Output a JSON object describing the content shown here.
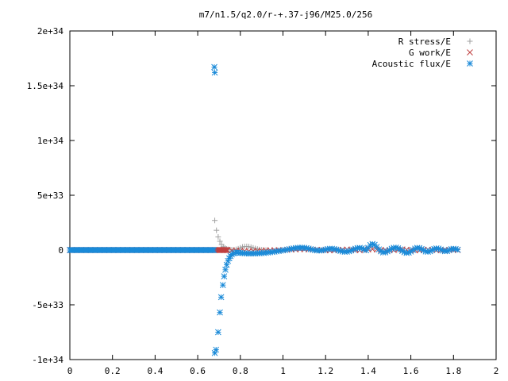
{
  "chart_data": {
    "type": "scatter",
    "title": "m7/n1.5/q2.0/r-+.37-j96/M25.0/256",
    "xlabel": "",
    "ylabel": "",
    "xlim": [
      0,
      2
    ],
    "ylim": [
      -1e+34,
      2e+34
    ],
    "x_ticks": [
      0,
      0.2,
      0.4,
      0.6,
      0.8,
      1,
      1.2,
      1.4,
      1.6,
      1.8,
      2
    ],
    "x_tick_labels": [
      "0",
      "0.2",
      "0.4",
      "0.6",
      "0.8",
      "1",
      "1.2",
      "1.4",
      "1.6",
      "1.8",
      "2"
    ],
    "y_ticks": [
      -1e+34,
      -5e+33,
      0,
      5e+33,
      1e+34,
      1.5e+34,
      2e+34
    ],
    "y_tick_labels": [
      "-1e+34",
      "-5e+33",
      "0",
      "5e+33",
      "1e+34",
      "1.5e+34",
      "2e+34"
    ],
    "grid": false,
    "legend_position": "top-right",
    "series": [
      {
        "name": "R stress/E",
        "marker": "plus",
        "color": "#a0a0a0",
        "points": [
          [
            0.68,
            2.7e+33
          ],
          [
            0.688,
            1.8e+33
          ],
          [
            0.696,
            1.2e+33
          ],
          [
            0.704,
            8e+32
          ],
          [
            0.712,
            5e+32
          ],
          [
            0.72,
            3e+32
          ],
          [
            0.728,
            1.8e+32
          ],
          [
            0.736,
            1e+32
          ],
          [
            0.744,
            6e+31
          ],
          [
            0.752,
            4e+31
          ],
          [
            0.76,
            3e+31
          ],
          [
            0.77,
            3e+31
          ],
          [
            0.78,
            6e+31
          ],
          [
            0.79,
            1.2e+32
          ],
          [
            0.8,
            2e+32
          ],
          [
            0.81,
            2.8e+32
          ],
          [
            0.82,
            3.2e+32
          ],
          [
            0.83,
            3.3e+32
          ],
          [
            0.84,
            3.1e+32
          ],
          [
            0.85,
            2.6e+32
          ],
          [
            0.86,
            2e+32
          ],
          [
            0.87,
            1.4e+32
          ],
          [
            0.88,
            9e+31
          ],
          [
            0.89,
            5e+31
          ],
          [
            0.9,
            2e+31
          ],
          [
            0.91,
            0
          ],
          [
            0.92,
            -1e+31
          ],
          [
            0.93,
            0
          ]
        ]
      },
      {
        "name": "G work/E",
        "marker": "cross",
        "color": "#c04040",
        "points": [
          [
            0.74,
            -2e+31
          ],
          [
            0.76,
            -4e+31
          ],
          [
            0.78,
            -6e+31
          ],
          [
            0.8,
            -8e+31
          ],
          [
            0.82,
            -9e+31
          ],
          [
            0.84,
            -1e+32
          ],
          [
            0.86,
            -9e+31
          ],
          [
            0.88,
            -8e+31
          ],
          [
            0.9,
            -6e+31
          ],
          [
            0.92,
            -4e+31
          ],
          [
            0.94,
            -3e+31
          ],
          [
            0.96,
            -2e+31
          ],
          [
            0.98,
            -1e+31
          ],
          [
            1.0,
            0
          ],
          [
            1.02,
            2e+31
          ],
          [
            1.04,
            4e+31
          ],
          [
            1.06,
            6e+31
          ],
          [
            1.08,
            8e+31
          ],
          [
            1.1,
            8e+31
          ],
          [
            1.12,
            6e+31
          ],
          [
            1.14,
            4e+31
          ],
          [
            1.16,
            2e+31
          ],
          [
            1.18,
            0
          ],
          [
            1.2,
            -2e+31
          ],
          [
            1.22,
            -3e+31
          ],
          [
            1.24,
            -2e+31
          ],
          [
            1.26,
            0
          ],
          [
            1.28,
            3e+31
          ],
          [
            1.3,
            5e+31
          ],
          [
            1.32,
            4e+31
          ],
          [
            1.34,
            1e+31
          ],
          [
            1.36,
            -2e+31
          ],
          [
            1.38,
            2e+31
          ],
          [
            1.4,
            6e+31
          ],
          [
            1.42,
            8e+31
          ],
          [
            1.44,
            5e+31
          ],
          [
            1.46,
            1e+31
          ],
          [
            1.48,
            -2e+31
          ],
          [
            1.5,
            -3e+31
          ],
          [
            1.52,
            0
          ],
          [
            1.54,
            4e+31
          ],
          [
            1.56,
            6e+31
          ],
          [
            1.58,
            3e+31
          ],
          [
            1.6,
            -1e+31
          ],
          [
            1.62,
            -3e+31
          ],
          [
            1.64,
            -1e+31
          ],
          [
            1.66,
            2e+31
          ],
          [
            1.68,
            4e+31
          ],
          [
            1.7,
            2e+31
          ],
          [
            1.72,
            -1e+31
          ],
          [
            1.74,
            -2e+31
          ],
          [
            1.76,
            0
          ],
          [
            1.78,
            2e+31
          ],
          [
            1.8,
            1e+31
          ],
          [
            1.82,
            0
          ]
        ]
      },
      {
        "name": "Acoustic flux/E",
        "marker": "star",
        "color": "#1a8ad8",
        "points": [
          [
            0.678,
            1.67e+34
          ],
          [
            0.68,
            1.62e+34
          ],
          [
            0.68,
            -9.4e+33
          ],
          [
            0.686,
            -9.1e+33
          ],
          [
            0.696,
            -7.5e+33
          ],
          [
            0.704,
            -5.7e+33
          ],
          [
            0.71,
            -4.3e+33
          ],
          [
            0.718,
            -3.2e+33
          ],
          [
            0.724,
            -2.4e+33
          ],
          [
            0.73,
            -1.8e+33
          ],
          [
            0.736,
            -1.35e+33
          ],
          [
            0.742,
            -1e+33
          ],
          [
            0.748,
            -7.5e+32
          ],
          [
            0.754,
            -5.5e+32
          ],
          [
            0.76,
            -4e+32
          ],
          [
            0.768,
            -3e+32
          ],
          [
            0.776,
            -2.5e+32
          ],
          [
            0.784,
            -2.3e+32
          ],
          [
            0.792,
            -2.4e+32
          ],
          [
            0.8,
            -2.6e+32
          ],
          [
            0.81,
            -2.8e+32
          ],
          [
            0.82,
            -3e+32
          ],
          [
            0.83,
            -3.1e+32
          ],
          [
            0.84,
            -3.2e+32
          ],
          [
            0.85,
            -3.2e+32
          ],
          [
            0.86,
            -3.2e+32
          ],
          [
            0.87,
            -3.1e+32
          ],
          [
            0.88,
            -3e+32
          ],
          [
            0.89,
            -2.9e+32
          ],
          [
            0.9,
            -2.8e+32
          ],
          [
            0.91,
            -2.7e+32
          ],
          [
            0.92,
            -2.5e+32
          ],
          [
            0.93,
            -2.3e+32
          ],
          [
            0.94,
            -2e+32
          ],
          [
            0.95,
            -1.8e+32
          ],
          [
            0.96,
            -1.5e+32
          ],
          [
            0.97,
            -1.2e+32
          ],
          [
            0.98,
            -9e+31
          ],
          [
            0.99,
            -6e+31
          ],
          [
            1.0,
            -3e+31
          ],
          [
            1.01,
            0
          ],
          [
            1.02,
            4e+31
          ],
          [
            1.03,
            8e+31
          ],
          [
            1.04,
            1.2e+32
          ],
          [
            1.05,
            1.5e+32
          ],
          [
            1.06,
            1.8e+32
          ],
          [
            1.07,
            2e+32
          ],
          [
            1.08,
            2.1e+32
          ],
          [
            1.09,
            2.1e+32
          ],
          [
            1.1,
            2e+32
          ],
          [
            1.11,
            1.7e+32
          ],
          [
            1.12,
            1.3e+32
          ],
          [
            1.13,
            8e+31
          ],
          [
            1.14,
            3e+31
          ],
          [
            1.15,
            -1e+31
          ],
          [
            1.16,
            -4e+31
          ],
          [
            1.17,
            -5e+31
          ],
          [
            1.18,
            -4e+31
          ],
          [
            1.19,
            -1e+31
          ],
          [
            1.2,
            4e+31
          ],
          [
            1.21,
            9e+31
          ],
          [
            1.22,
            1.2e+32
          ],
          [
            1.23,
            1.2e+32
          ],
          [
            1.24,
            9e+31
          ],
          [
            1.25,
            4e+31
          ],
          [
            1.26,
            -2e+31
          ],
          [
            1.27,
            -8e+31
          ],
          [
            1.28,
            -1.3e+32
          ],
          [
            1.29,
            -1.6e+32
          ],
          [
            1.3,
            -1.5e+32
          ],
          [
            1.31,
            -1.1e+32
          ],
          [
            1.32,
            -4e+31
          ],
          [
            1.33,
            4e+31
          ],
          [
            1.34,
            1.2e+32
          ],
          [
            1.35,
            1.8e+32
          ],
          [
            1.36,
            2e+32
          ],
          [
            1.37,
            1.6e+32
          ],
          [
            1.38,
            8e+31
          ],
          [
            1.39,
            -2e+31
          ],
          [
            1.4,
            2e+32
          ],
          [
            1.41,
            4.5e+32
          ],
          [
            1.42,
            5.5e+32
          ],
          [
            1.43,
            4.8e+32
          ],
          [
            1.44,
            2.8e+32
          ],
          [
            1.45,
            6e+31
          ],
          [
            1.46,
            -1.2e+32
          ],
          [
            1.47,
            -2.2e+32
          ],
          [
            1.48,
            -2.1e+32
          ],
          [
            1.49,
            -1.2e+32
          ],
          [
            1.5,
            0
          ],
          [
            1.51,
            1.2e+32
          ],
          [
            1.52,
            2e+32
          ],
          [
            1.53,
            2.2e+32
          ],
          [
            1.54,
            1.6e+32
          ],
          [
            1.55,
            6e+31
          ],
          [
            1.56,
            -8e+31
          ],
          [
            1.57,
            -2e+32
          ],
          [
            1.58,
            -2.6e+32
          ],
          [
            1.59,
            -2.4e+32
          ],
          [
            1.6,
            -1.4e+32
          ],
          [
            1.61,
            0
          ],
          [
            1.62,
            1.3e+32
          ],
          [
            1.63,
            2e+32
          ],
          [
            1.64,
            1.8e+32
          ],
          [
            1.65,
            9e+31
          ],
          [
            1.66,
            -3e+31
          ],
          [
            1.67,
            -1.3e+32
          ],
          [
            1.68,
            -1.6e+32
          ],
          [
            1.69,
            -1.1e+32
          ],
          [
            1.7,
            0
          ],
          [
            1.71,
            1e+32
          ],
          [
            1.72,
            1.5e+32
          ],
          [
            1.73,
            1.3e+32
          ],
          [
            1.74,
            5e+31
          ],
          [
            1.75,
            -5e+31
          ],
          [
            1.76,
            -1.1e+32
          ],
          [
            1.77,
            -9e+31
          ],
          [
            1.78,
            -1e+31
          ],
          [
            1.79,
            8e+31
          ],
          [
            1.8,
            1.2e+32
          ],
          [
            1.81,
            9e+31
          ],
          [
            1.82,
            3e+31
          ]
        ]
      }
    ]
  }
}
